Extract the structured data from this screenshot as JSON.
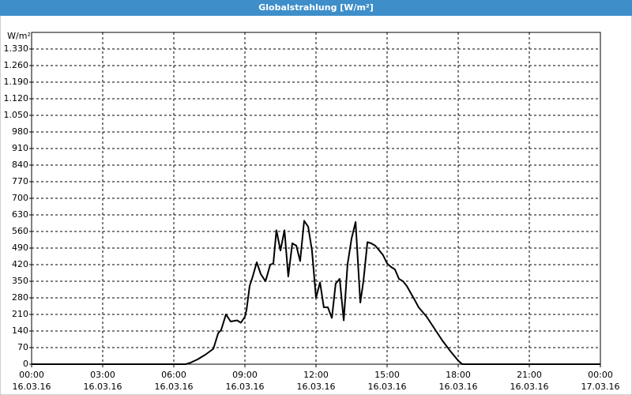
{
  "chart_data": {
    "type": "line",
    "title": "Globalstrahlung [W/m²]",
    "y_label": "W/m²",
    "xlim": [
      0,
      24
    ],
    "xticks": [
      {
        "value": 0,
        "label": "00:00"
      },
      {
        "value": 3,
        "label": "03:00"
      },
      {
        "value": 6,
        "label": "06:00"
      },
      {
        "value": 9,
        "label": "09:00"
      },
      {
        "value": 12,
        "label": "12:00"
      },
      {
        "value": 15,
        "label": "15:00"
      },
      {
        "value": 18,
        "label": "18:00"
      },
      {
        "value": 21,
        "label": "21:00"
      },
      {
        "value": 24,
        "label": "00:00"
      }
    ],
    "xtick_dates": [
      "16.03.16",
      "16.03.16",
      "16.03.16",
      "16.03.16",
      "16.03.16",
      "16.03.16",
      "16.03.16",
      "16.03.16",
      "17.03.16"
    ],
    "ylim": [
      0,
      1400
    ],
    "yticks": [
      0,
      70,
      140,
      210,
      280,
      350,
      420,
      490,
      560,
      630,
      700,
      770,
      840,
      910,
      980,
      {
        "value": 1050,
        "label": "1.050"
      },
      {
        "value": 1120,
        "label": "1.120"
      },
      {
        "value": 1190,
        "label": "1.190"
      },
      {
        "value": 1260,
        "label": "1.260"
      },
      {
        "value": 1330,
        "label": "1.330"
      }
    ],
    "grid": true,
    "color": "#000000",
    "x": [
      0,
      6.5,
      6.67,
      7.0,
      7.33,
      7.67,
      7.87,
      8.0,
      8.2,
      8.4,
      8.67,
      8.83,
      9.0,
      9.07,
      9.2,
      9.33,
      9.5,
      9.67,
      9.87,
      10.07,
      10.2,
      10.33,
      10.5,
      10.67,
      10.83,
      11.0,
      11.17,
      11.33,
      11.5,
      11.67,
      11.83,
      12.0,
      12.17,
      12.33,
      12.5,
      12.67,
      12.83,
      13.0,
      13.17,
      13.33,
      13.5,
      13.67,
      13.87,
      14.0,
      14.17,
      14.33,
      14.5,
      14.67,
      14.83,
      15.0,
      15.17,
      15.33,
      15.5,
      15.67,
      15.83,
      16.0,
      16.17,
      16.33,
      16.67,
      17.0,
      17.33,
      17.67,
      18.0,
      18.17,
      24
    ],
    "values": [
      0,
      0,
      5,
      20,
      40,
      65,
      130,
      145,
      210,
      180,
      185,
      175,
      200,
      230,
      330,
      370,
      430,
      380,
      350,
      420,
      425,
      565,
      480,
      565,
      370,
      510,
      500,
      435,
      605,
      580,
      480,
      280,
      345,
      240,
      240,
      195,
      340,
      360,
      185,
      420,
      530,
      600,
      260,
      350,
      515,
      510,
      500,
      480,
      460,
      425,
      410,
      400,
      360,
      350,
      330,
      300,
      270,
      240,
      200,
      150,
      100,
      55,
      15,
      0,
      0
    ]
  }
}
